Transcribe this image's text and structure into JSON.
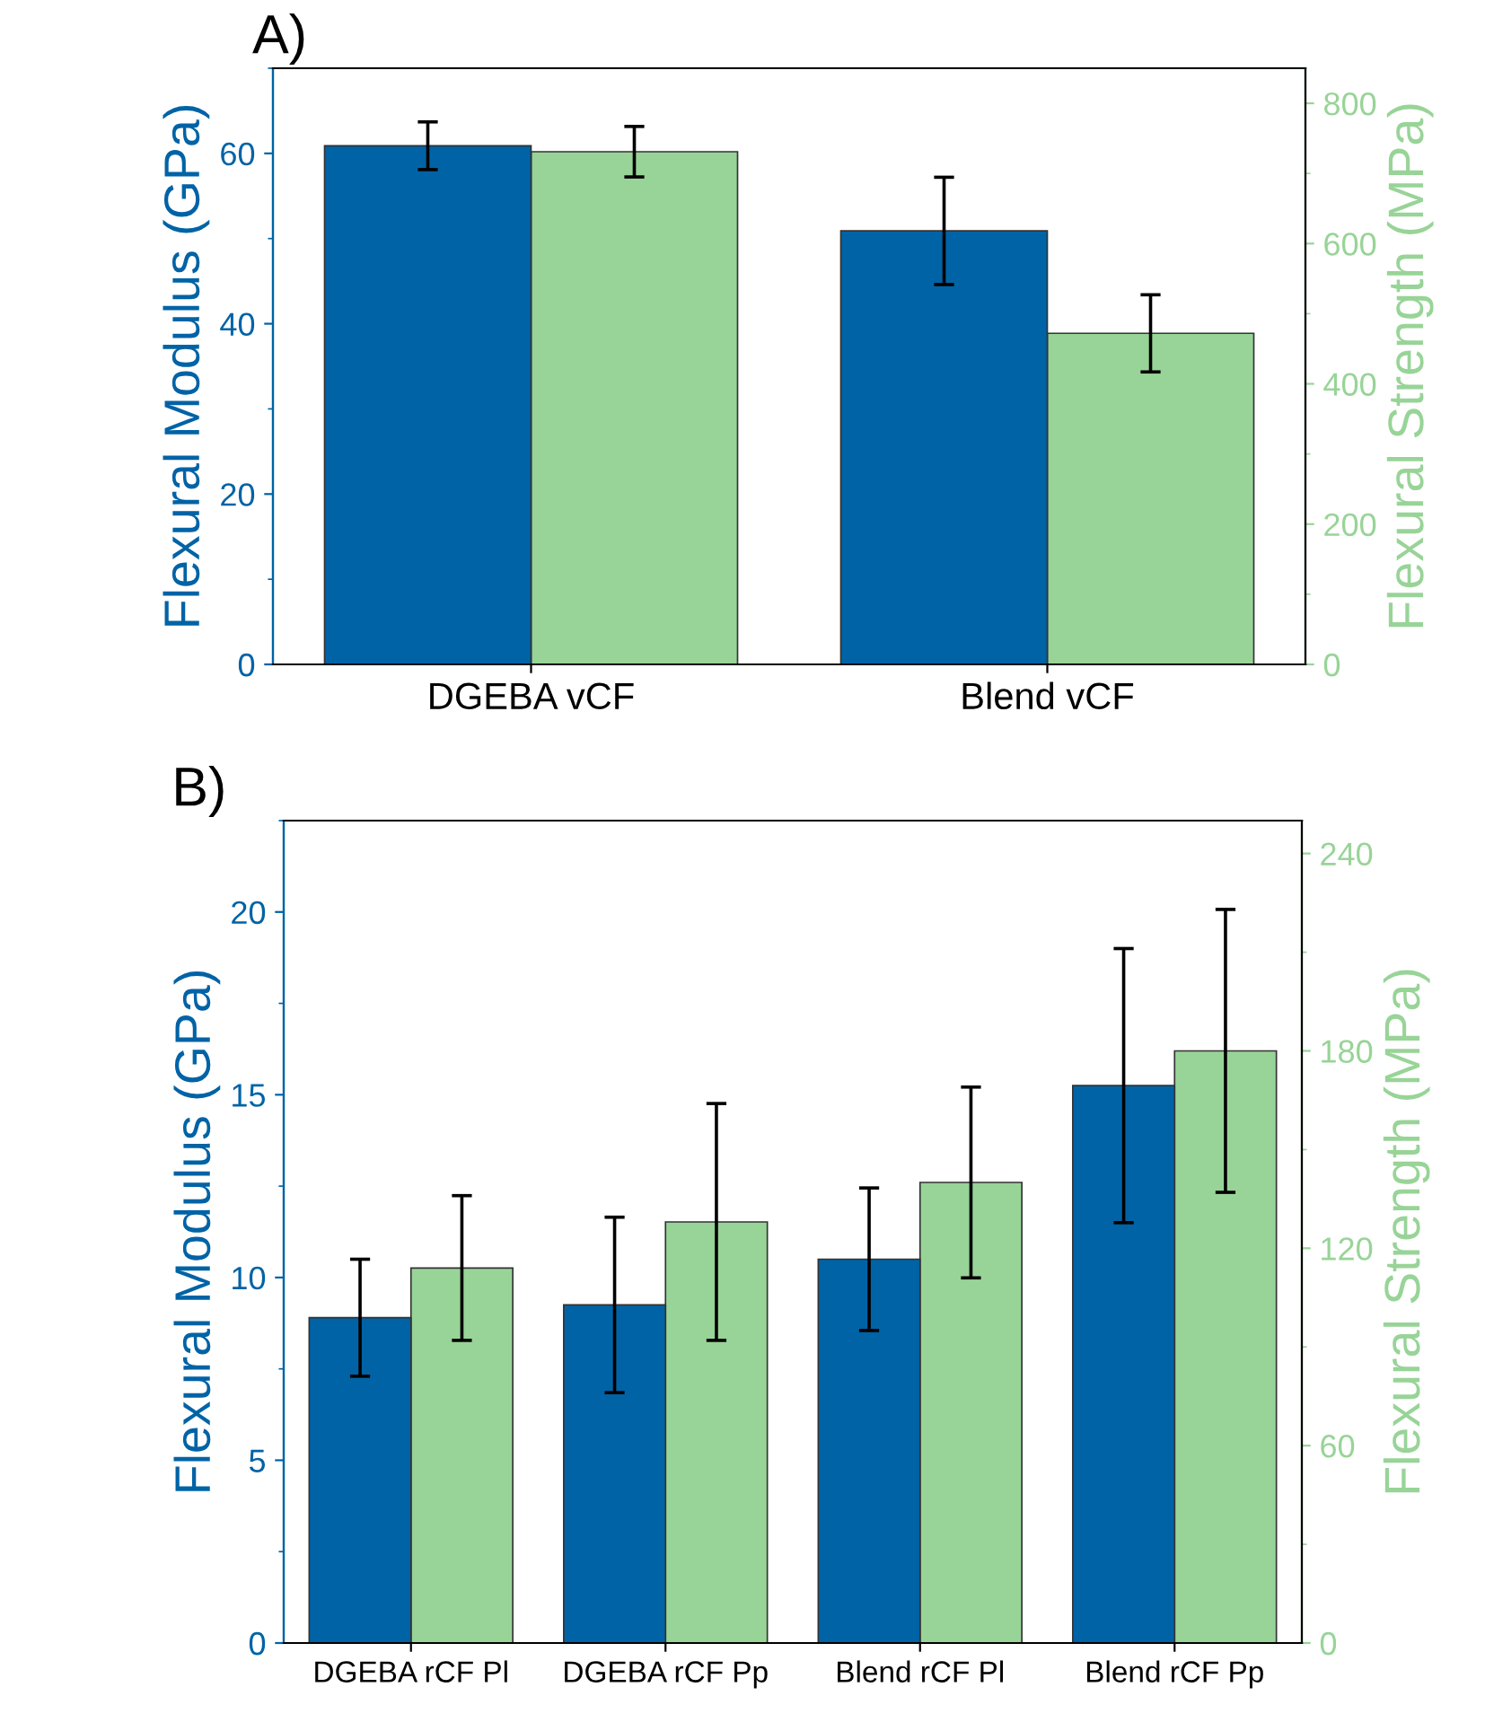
{
  "chart_data": [
    {
      "type": "bar",
      "title": "A)",
      "categories": [
        "DGEBA vCF",
        "Blend vCF"
      ],
      "ylabel": "Flexural Modulus (GPa)",
      "y2label": "Flexural Strength (MPa)",
      "ylim": [
        0,
        70
      ],
      "yticks": [
        0,
        20,
        40,
        60
      ],
      "y2lim": [
        0,
        850
      ],
      "y2ticks": [
        0,
        200,
        400,
        600,
        800
      ],
      "grid": false,
      "series": [
        {
          "color": "#0063a6",
          "values": [
            60.9,
            50.9
          ],
          "errors": [
            2.8,
            6.3
          ]
        },
        {
          "color": "#98d497",
          "values": [
            731,
            472
          ],
          "errors": [
            36,
            55
          ],
          "axis": "y2"
        }
      ]
    },
    {
      "type": "bar",
      "title": "B)",
      "categories": [
        "DGEBA rCF Pl",
        "DGEBA rCF Pp",
        "Blend rCF Pl",
        "Blend rCF Pp"
      ],
      "ylabel": "Flexural Modulus (GPa)",
      "y2label": "Flexural Strength (MPa)",
      "ylim": [
        0,
        22.5
      ],
      "yticks": [
        0,
        5,
        10,
        15,
        20
      ],
      "y2lim": [
        0,
        250
      ],
      "y2ticks": [
        0,
        60,
        120,
        180,
        240
      ],
      "grid": false,
      "series": [
        {
          "color": "#0063a6",
          "values": [
            8.9,
            9.25,
            10.5,
            15.25
          ],
          "errors": [
            1.6,
            2.4,
            1.95,
            3.75
          ]
        },
        {
          "color": "#98d497",
          "values": [
            114,
            128,
            140,
            180
          ],
          "errors": [
            22,
            36,
            29,
            43
          ],
          "axis": "y2"
        }
      ]
    }
  ]
}
